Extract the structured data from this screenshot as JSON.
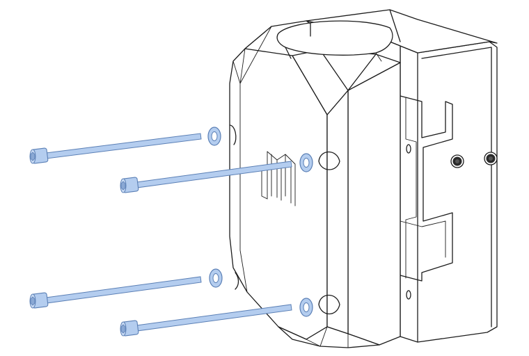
{
  "figure": {
    "description_visible_text": "",
    "colors": {
      "line": "#1c1c1c",
      "background": "#ffffff",
      "bolt_fill": "#b4cdef",
      "bolt_stroke": "#5a7fb5",
      "socket_dark": "#2a2a2a"
    },
    "parts": {
      "bolts": [
        {
          "name": "bolt-upper-back"
        },
        {
          "name": "bolt-upper-front"
        },
        {
          "name": "bolt-lower-back"
        },
        {
          "name": "bolt-lower-front"
        }
      ],
      "washers": [
        {
          "name": "washer-upper-back"
        },
        {
          "name": "washer-upper-front"
        },
        {
          "name": "washer-lower-back"
        },
        {
          "name": "washer-lower-front"
        }
      ],
      "housing": {
        "name": "clamp-housing"
      },
      "inserts": [
        {
          "name": "threaded-insert-left"
        },
        {
          "name": "threaded-insert-right"
        }
      ]
    }
  }
}
